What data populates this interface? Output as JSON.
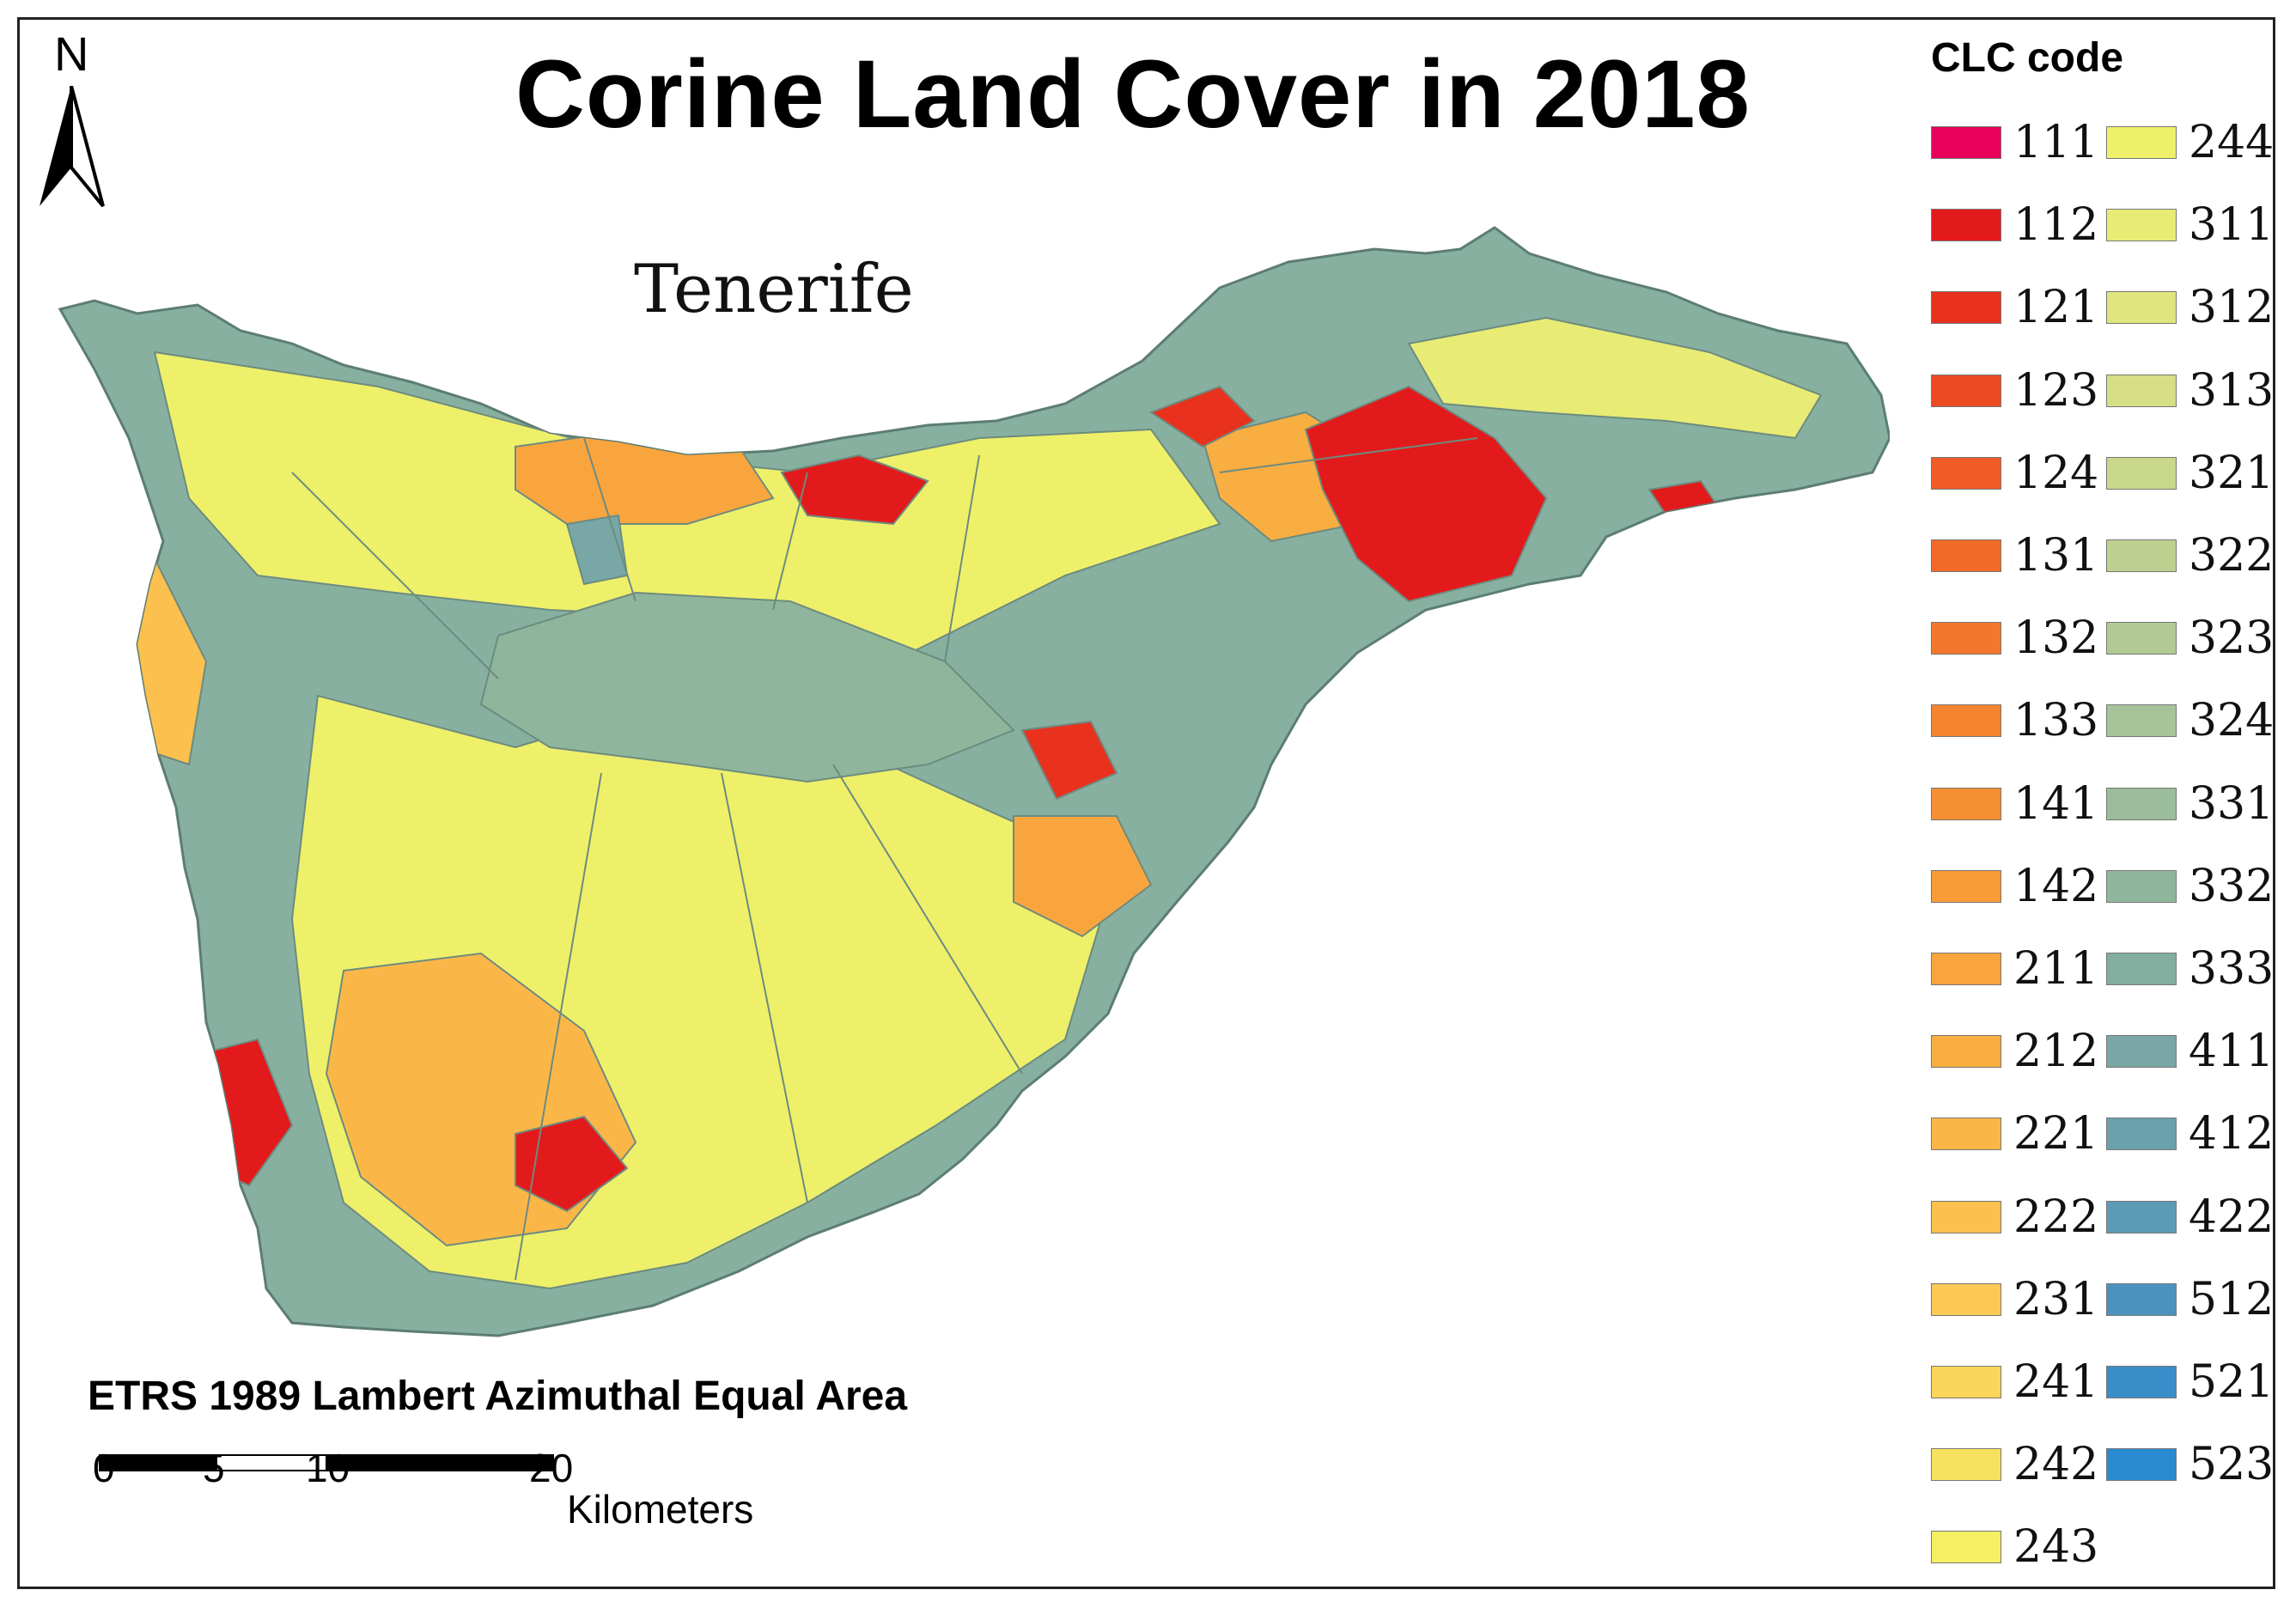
{
  "title": "Corine Land Cover in 2018",
  "island_label": "Tenerife",
  "north_label": "N",
  "legend": {
    "title": "CLC code",
    "items": [
      {
        "code": "111",
        "color": "#e8005a"
      },
      {
        "code": "112",
        "color": "#e31a1c"
      },
      {
        "code": "121",
        "color": "#e8321e"
      },
      {
        "code": "123",
        "color": "#ec4a22"
      },
      {
        "code": "124",
        "color": "#ef5c25"
      },
      {
        "code": "131",
        "color": "#f16a28"
      },
      {
        "code": "132",
        "color": "#f3782c"
      },
      {
        "code": "133",
        "color": "#f5842f"
      },
      {
        "code": "141",
        "color": "#f68f33"
      },
      {
        "code": "142",
        "color": "#f89b38"
      },
      {
        "code": "211",
        "color": "#f9a53d"
      },
      {
        "code": "212",
        "color": "#f9ae42"
      },
      {
        "code": "221",
        "color": "#fab748"
      },
      {
        "code": "222",
        "color": "#fbc04e"
      },
      {
        "code": "231",
        "color": "#fcca54"
      },
      {
        "code": "241",
        "color": "#fbd65a"
      },
      {
        "code": "242",
        "color": "#f7e25f"
      },
      {
        "code": "243",
        "color": "#f6ee63"
      },
      {
        "code": "244",
        "color": "#eef06a"
      },
      {
        "code": "311",
        "color": "#e8ec74"
      },
      {
        "code": "312",
        "color": "#e0e57e"
      },
      {
        "code": "313",
        "color": "#d6de86"
      },
      {
        "code": "321",
        "color": "#cad88c"
      },
      {
        "code": "322",
        "color": "#bdd090"
      },
      {
        "code": "323",
        "color": "#b1ca94"
      },
      {
        "code": "324",
        "color": "#a6c499"
      },
      {
        "code": "331",
        "color": "#9bbd9b"
      },
      {
        "code": "332",
        "color": "#8fb69c"
      },
      {
        "code": "333",
        "color": "#84ae9f"
      },
      {
        "code": "411",
        "color": "#78a7a6"
      },
      {
        "code": "412",
        "color": "#6ba1ad"
      },
      {
        "code": "422",
        "color": "#5c9bb5"
      },
      {
        "code": "512",
        "color": "#4b93bf"
      },
      {
        "code": "521",
        "color": "#398dc8"
      },
      {
        "code": "523",
        "color": "#2a8ad0"
      }
    ]
  },
  "projection": "ETRS 1989 Lambert Azimuthal Equal Area",
  "scale": {
    "ticks": [
      "0",
      "5",
      "10",
      "20"
    ],
    "unit": "Kilometers"
  }
}
